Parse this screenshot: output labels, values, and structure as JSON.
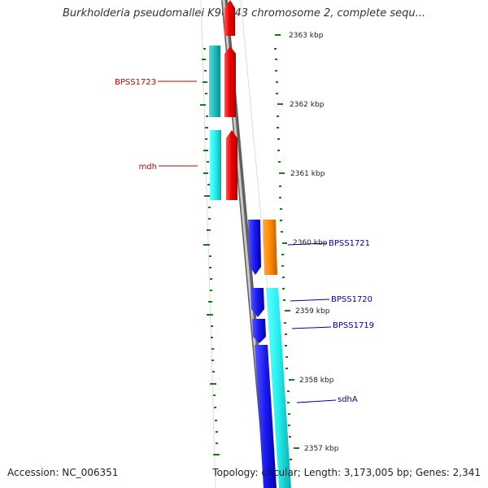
{
  "title": "Burkholderia pseudomallei K96243 chromosome 2, complete sequ...",
  "accession": "Accession: NC_006351",
  "summary": "Topology: circular; Length: 3,173,005 bp; Genes: 2,341",
  "scale_labels": [
    "2363 kbp",
    "2362 kbp",
    "2361 kbp",
    "2360 kbp",
    "2359 kbp",
    "2358 kbp",
    "2357 kbp"
  ],
  "genes_left": [
    {
      "label": "BPSS1723",
      "color": "#cc0000"
    },
    {
      "label": "mdh",
      "color": "#cc0000"
    }
  ],
  "genes_right": [
    {
      "label": "BPSS1721",
      "color": "#0000aa"
    },
    {
      "label": "BPSS1720",
      "color": "#0000aa"
    },
    {
      "label": "BPSS1719",
      "color": "#0000aa"
    },
    {
      "label": "sdhA",
      "color": "#0000aa"
    }
  ],
  "colors": {
    "red": "#ee0000",
    "teal": "#22bbbb",
    "cyan": "#22eeee",
    "blue": "#1a1aee",
    "orange": "#ff8800",
    "tick": "#1a7a1a",
    "backbone": "#808080"
  }
}
